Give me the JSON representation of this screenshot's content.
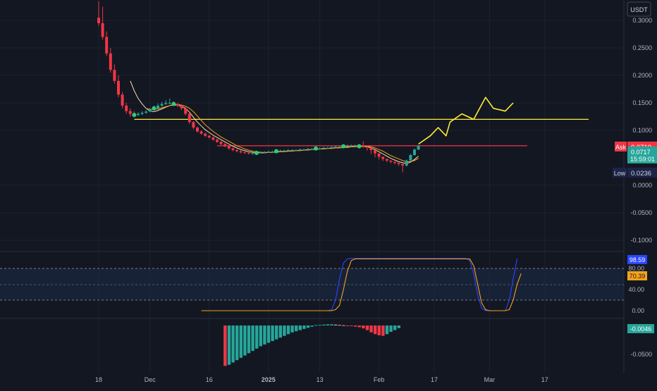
{
  "header": {
    "currency": "USDT"
  },
  "price_axis": {
    "ticks": [
      "0.3000",
      "0.2500",
      "0.2000",
      "0.1500",
      "0.1000",
      "0.0000",
      "-0.0500",
      "-0.1000"
    ],
    "tick_values": [
      0.3,
      0.25,
      0.2,
      0.15,
      0.1,
      0.0,
      -0.05,
      -0.1
    ],
    "badges": {
      "ask_label": "Ask",
      "ask_value": "0.0710",
      "last_value": "0.0717",
      "countdown": "15:59:01",
      "low_label": "Low",
      "low_value": "0.0236"
    }
  },
  "stoch_axis": {
    "ticks": [
      "80.00",
      "40.00",
      "0.00"
    ],
    "tick_values": [
      80,
      40,
      0
    ],
    "k_value": "98.59",
    "d_value": "70.39"
  },
  "macd_axis": {
    "ticks": [
      "-0.0500"
    ],
    "tick_values": [
      -0.05
    ],
    "hist_value": "-0.0046"
  },
  "time_axis": {
    "labels": [
      "18",
      "Dec",
      "16",
      "2025",
      "13",
      "Feb",
      "17",
      "Mar",
      "17"
    ]
  },
  "colors": {
    "bg": "#131722",
    "up": "#26a69a",
    "down": "#f23645",
    "yellow": "#ffeb3b",
    "orange": "#f7a21b",
    "blue": "#2a45ff",
    "red_line": "#f23645",
    "text": "#b2b5be"
  },
  "chart_data": [
    {
      "type": "candlestick",
      "pane": "price",
      "unit": "USDT",
      "x": [
        "Nov 18",
        "Nov 19",
        "Nov 20",
        "Nov 21",
        "Nov 22",
        "Nov 23",
        "Nov 24",
        "Nov 25",
        "Nov 26",
        "Nov 27",
        "Nov 28",
        "Nov 29",
        "Nov 30",
        "Dec 1",
        "Dec 2",
        "Dec 3",
        "Dec 4",
        "Dec 5",
        "Dec 6",
        "Dec 7",
        "Dec 8",
        "Dec 9",
        "Dec 10",
        "Dec 11",
        "Dec 12",
        "Dec 13",
        "Dec 14",
        "Dec 15",
        "Dec 16",
        "Dec 17",
        "Dec 18",
        "Dec 19",
        "Dec 20",
        "Dec 21",
        "Dec 22",
        "Dec 23",
        "Dec 24",
        "Dec 25",
        "Dec 26",
        "Dec 27",
        "Dec 28",
        "Dec 29",
        "Dec 30",
        "Dec 31",
        "Jan 1",
        "Jan 2",
        "Jan 3",
        "Jan 4",
        "Jan 5",
        "Jan 6",
        "Jan 7",
        "Jan 8",
        "Jan 9",
        "Jan 10",
        "Jan 11",
        "Jan 12",
        "Jan 13",
        "Jan 14",
        "Jan 15",
        "Jan 16",
        "Jan 17",
        "Jan 18",
        "Jan 19",
        "Jan 20",
        "Jan 21",
        "Jan 22",
        "Jan 23",
        "Jan 24",
        "Jan 25",
        "Jan 26",
        "Jan 27",
        "Jan 28",
        "Jan 29",
        "Jan 30",
        "Jan 31",
        "Feb 1",
        "Feb 2",
        "Feb 3",
        "Feb 4",
        "Feb 5",
        "Feb 6",
        "Feb 7"
      ],
      "open": [
        0.305,
        0.295,
        0.27,
        0.24,
        0.21,
        0.19,
        0.165,
        0.145,
        0.135,
        0.13,
        0.128,
        0.13,
        0.132,
        0.134,
        0.138,
        0.14,
        0.145,
        0.148,
        0.15,
        0.15,
        0.148,
        0.145,
        0.14,
        0.13,
        0.115,
        0.105,
        0.098,
        0.094,
        0.09,
        0.087,
        0.083,
        0.079,
        0.075,
        0.071,
        0.067,
        0.064,
        0.062,
        0.06,
        0.059,
        0.058,
        0.058,
        0.059,
        0.06,
        0.06,
        0.061,
        0.061,
        0.062,
        0.063,
        0.063,
        0.064,
        0.064,
        0.064,
        0.065,
        0.065,
        0.066,
        0.066,
        0.067,
        0.067,
        0.068,
        0.068,
        0.069,
        0.07,
        0.07,
        0.071,
        0.072,
        0.072,
        0.072,
        0.071,
        0.07,
        0.069,
        0.064,
        0.058,
        0.052,
        0.048,
        0.045,
        0.043,
        0.041,
        0.039,
        0.036,
        0.045,
        0.055,
        0.065
      ],
      "close": [
        0.295,
        0.27,
        0.24,
        0.21,
        0.19,
        0.165,
        0.145,
        0.135,
        0.13,
        0.128,
        0.13,
        0.132,
        0.134,
        0.138,
        0.14,
        0.145,
        0.148,
        0.15,
        0.15,
        0.148,
        0.145,
        0.14,
        0.13,
        0.115,
        0.105,
        0.098,
        0.094,
        0.09,
        0.087,
        0.083,
        0.079,
        0.075,
        0.071,
        0.067,
        0.064,
        0.062,
        0.06,
        0.059,
        0.058,
        0.058,
        0.059,
        0.06,
        0.06,
        0.061,
        0.061,
        0.062,
        0.063,
        0.063,
        0.064,
        0.064,
        0.064,
        0.065,
        0.065,
        0.066,
        0.066,
        0.067,
        0.067,
        0.068,
        0.068,
        0.069,
        0.07,
        0.07,
        0.071,
        0.072,
        0.072,
        0.072,
        0.071,
        0.07,
        0.069,
        0.064,
        0.058,
        0.052,
        0.048,
        0.045,
        0.043,
        0.041,
        0.039,
        0.036,
        0.045,
        0.055,
        0.065,
        0.0717
      ],
      "high": [
        0.335,
        0.325,
        0.28,
        0.25,
        0.22,
        0.2,
        0.17,
        0.15,
        0.14,
        0.135,
        0.133,
        0.135,
        0.137,
        0.141,
        0.145,
        0.149,
        0.152,
        0.155,
        0.158,
        0.153,
        0.15,
        0.147,
        0.142,
        0.132,
        0.117,
        0.107,
        0.1,
        0.096,
        0.092,
        0.089,
        0.085,
        0.081,
        0.077,
        0.073,
        0.069,
        0.066,
        0.064,
        0.062,
        0.061,
        0.06,
        0.061,
        0.062,
        0.062,
        0.063,
        0.063,
        0.064,
        0.065,
        0.065,
        0.066,
        0.066,
        0.066,
        0.067,
        0.067,
        0.068,
        0.068,
        0.069,
        0.069,
        0.07,
        0.07,
        0.071,
        0.072,
        0.072,
        0.073,
        0.074,
        0.074,
        0.074,
        0.073,
        0.08,
        0.072,
        0.066,
        0.06,
        0.054,
        0.05,
        0.047,
        0.045,
        0.043,
        0.041,
        0.038,
        0.047,
        0.057,
        0.067,
        0.073
      ],
      "low": [
        0.29,
        0.265,
        0.235,
        0.205,
        0.185,
        0.16,
        0.14,
        0.13,
        0.125,
        0.124,
        0.126,
        0.128,
        0.13,
        0.133,
        0.136,
        0.138,
        0.143,
        0.146,
        0.147,
        0.145,
        0.142,
        0.137,
        0.127,
        0.112,
        0.102,
        0.096,
        0.092,
        0.088,
        0.085,
        0.081,
        0.077,
        0.073,
        0.069,
        0.065,
        0.062,
        0.06,
        0.058,
        0.057,
        0.056,
        0.056,
        0.057,
        0.058,
        0.058,
        0.059,
        0.059,
        0.06,
        0.061,
        0.061,
        0.062,
        0.062,
        0.062,
        0.063,
        0.063,
        0.064,
        0.064,
        0.065,
        0.065,
        0.066,
        0.066,
        0.067,
        0.068,
        0.068,
        0.069,
        0.07,
        0.07,
        0.07,
        0.069,
        0.068,
        0.063,
        0.057,
        0.051,
        0.047,
        0.044,
        0.042,
        0.04,
        0.038,
        0.035,
        0.0236,
        0.034,
        0.044,
        0.054,
        0.064
      ],
      "ma_fast": [
        null,
        null,
        null,
        null,
        null,
        null,
        null,
        null,
        0.19,
        0.172,
        0.158,
        0.148,
        0.14,
        0.135,
        0.134,
        0.136,
        0.139,
        0.142,
        0.145,
        0.146,
        0.146,
        0.144,
        0.14,
        0.133,
        0.124,
        0.115,
        0.108,
        0.101,
        0.096,
        0.091,
        0.087,
        0.083,
        0.079,
        0.075,
        0.071,
        0.068,
        0.065,
        0.063,
        0.061,
        0.06,
        0.059,
        0.059,
        0.059,
        0.06,
        0.06,
        0.061,
        0.061,
        0.062,
        0.062,
        0.063,
        0.063,
        0.064,
        0.064,
        0.065,
        0.065,
        0.066,
        0.066,
        0.067,
        0.067,
        0.068,
        0.068,
        0.069,
        0.069,
        0.07,
        0.07,
        0.071,
        0.071,
        0.071,
        0.07,
        0.068,
        0.065,
        0.061,
        0.057,
        0.053,
        0.049,
        0.046,
        0.043,
        0.041,
        0.04,
        0.042,
        0.047,
        0.053
      ],
      "ma_slow": [
        null,
        null,
        null,
        null,
        null,
        null,
        null,
        null,
        null,
        null,
        null,
        null,
        0.14,
        0.138,
        0.138,
        0.139,
        0.141,
        0.143,
        0.145,
        0.147,
        0.147,
        0.146,
        0.144,
        0.14,
        0.134,
        0.126,
        0.118,
        0.11,
        0.104,
        0.098,
        0.093,
        0.088,
        0.084,
        0.08,
        0.076,
        0.072,
        0.069,
        0.066,
        0.064,
        0.062,
        0.061,
        0.06,
        0.06,
        0.06,
        0.06,
        0.06,
        0.061,
        0.061,
        0.062,
        0.062,
        0.063,
        0.063,
        0.064,
        0.064,
        0.065,
        0.065,
        0.066,
        0.066,
        0.067,
        0.067,
        0.068,
        0.068,
        0.069,
        0.069,
        0.07,
        0.07,
        0.071,
        0.071,
        0.071,
        0.07,
        0.068,
        0.065,
        0.062,
        0.058,
        0.054,
        0.051,
        0.048,
        0.045,
        0.043,
        0.043,
        0.045,
        0.049
      ],
      "horizontal_lines": [
        {
          "name": "yellow-level",
          "value": 0.12,
          "from": "Nov 27",
          "color": "#ffeb3b"
        },
        {
          "name": "red-level",
          "value": 0.072,
          "from": "Dec 18",
          "color": "#f23645"
        }
      ],
      "projection_curve": {
        "x": [
          81,
          84,
          86,
          88,
          89,
          92,
          95,
          98,
          100,
          103,
          105
        ],
        "y": [
          0.075,
          0.09,
          0.105,
          0.09,
          0.115,
          0.13,
          0.12,
          0.16,
          0.14,
          0.135,
          0.15
        ]
      },
      "ylim": [
        -0.115,
        0.32
      ]
    },
    {
      "type": "line",
      "pane": "stochastic",
      "series": [
        {
          "color": "#2a45ff",
          "values": [
            0,
            0,
            0,
            0,
            0,
            0,
            0,
            0,
            0,
            0,
            0,
            0,
            0,
            0,
            0,
            0,
            0,
            0,
            0,
            0,
            0,
            0,
            0,
            0,
            0,
            0,
            0,
            0,
            0,
            0,
            0,
            0,
            0,
            2,
            20,
            60,
            90,
            98,
            99,
            99,
            99,
            99,
            99,
            99,
            99,
            99,
            99,
            99,
            99,
            99,
            99,
            99,
            99,
            99,
            99,
            99,
            99,
            99,
            99,
            99,
            99,
            99,
            99,
            99,
            99,
            99,
            99,
            99,
            95,
            70,
            30,
            5,
            0,
            0,
            0,
            0,
            0,
            0,
            20,
            60,
            98.59
          ]
        },
        {
          "color": "#f7a21b",
          "values": [
            0,
            0,
            0,
            0,
            0,
            0,
            0,
            0,
            0,
            0,
            0,
            0,
            0,
            0,
            0,
            0,
            0,
            0,
            0,
            0,
            0,
            0,
            0,
            0,
            0,
            0,
            0,
            0,
            0,
            0,
            0,
            0,
            0,
            0,
            2,
            10,
            40,
            75,
            95,
            98,
            98,
            98,
            98,
            98,
            98,
            98,
            98,
            98,
            98,
            98,
            98,
            98,
            98,
            98,
            98,
            98,
            98,
            98,
            98,
            98,
            98,
            98,
            98,
            98,
            98,
            98,
            98,
            98,
            98,
            85,
            50,
            15,
            2,
            0,
            0,
            0,
            0,
            0,
            2,
            20,
            50,
            70.39
          ]
        }
      ],
      "bands": [
        20,
        80
      ],
      "ylim": [
        -10,
        115
      ]
    },
    {
      "type": "bar",
      "pane": "macd_histogram",
      "values": [
        null,
        null,
        null,
        null,
        null,
        null,
        null,
        null,
        null,
        null,
        null,
        null,
        null,
        null,
        null,
        null,
        null,
        null,
        null,
        null,
        null,
        null,
        null,
        null,
        null,
        null,
        null,
        null,
        null,
        null,
        null,
        null,
        -0.07,
        -0.068,
        -0.064,
        -0.06,
        -0.056,
        -0.052,
        -0.048,
        -0.044,
        -0.04,
        -0.036,
        -0.033,
        -0.03,
        -0.027,
        -0.024,
        -0.021,
        -0.018,
        -0.015,
        -0.012,
        -0.01,
        -0.008,
        -0.006,
        -0.004,
        -0.002,
        0.0008,
        0.001,
        0.0015,
        0.002,
        0.002,
        0.0015,
        0.001,
        0.0005,
        -0.0005,
        -0.001,
        -0.002,
        -0.003,
        -0.005,
        -0.008,
        -0.012,
        -0.015,
        -0.017,
        -0.018,
        -0.015,
        -0.011,
        -0.008,
        -0.0046
      ],
      "ylim": [
        -0.075,
        0.008
      ]
    }
  ]
}
